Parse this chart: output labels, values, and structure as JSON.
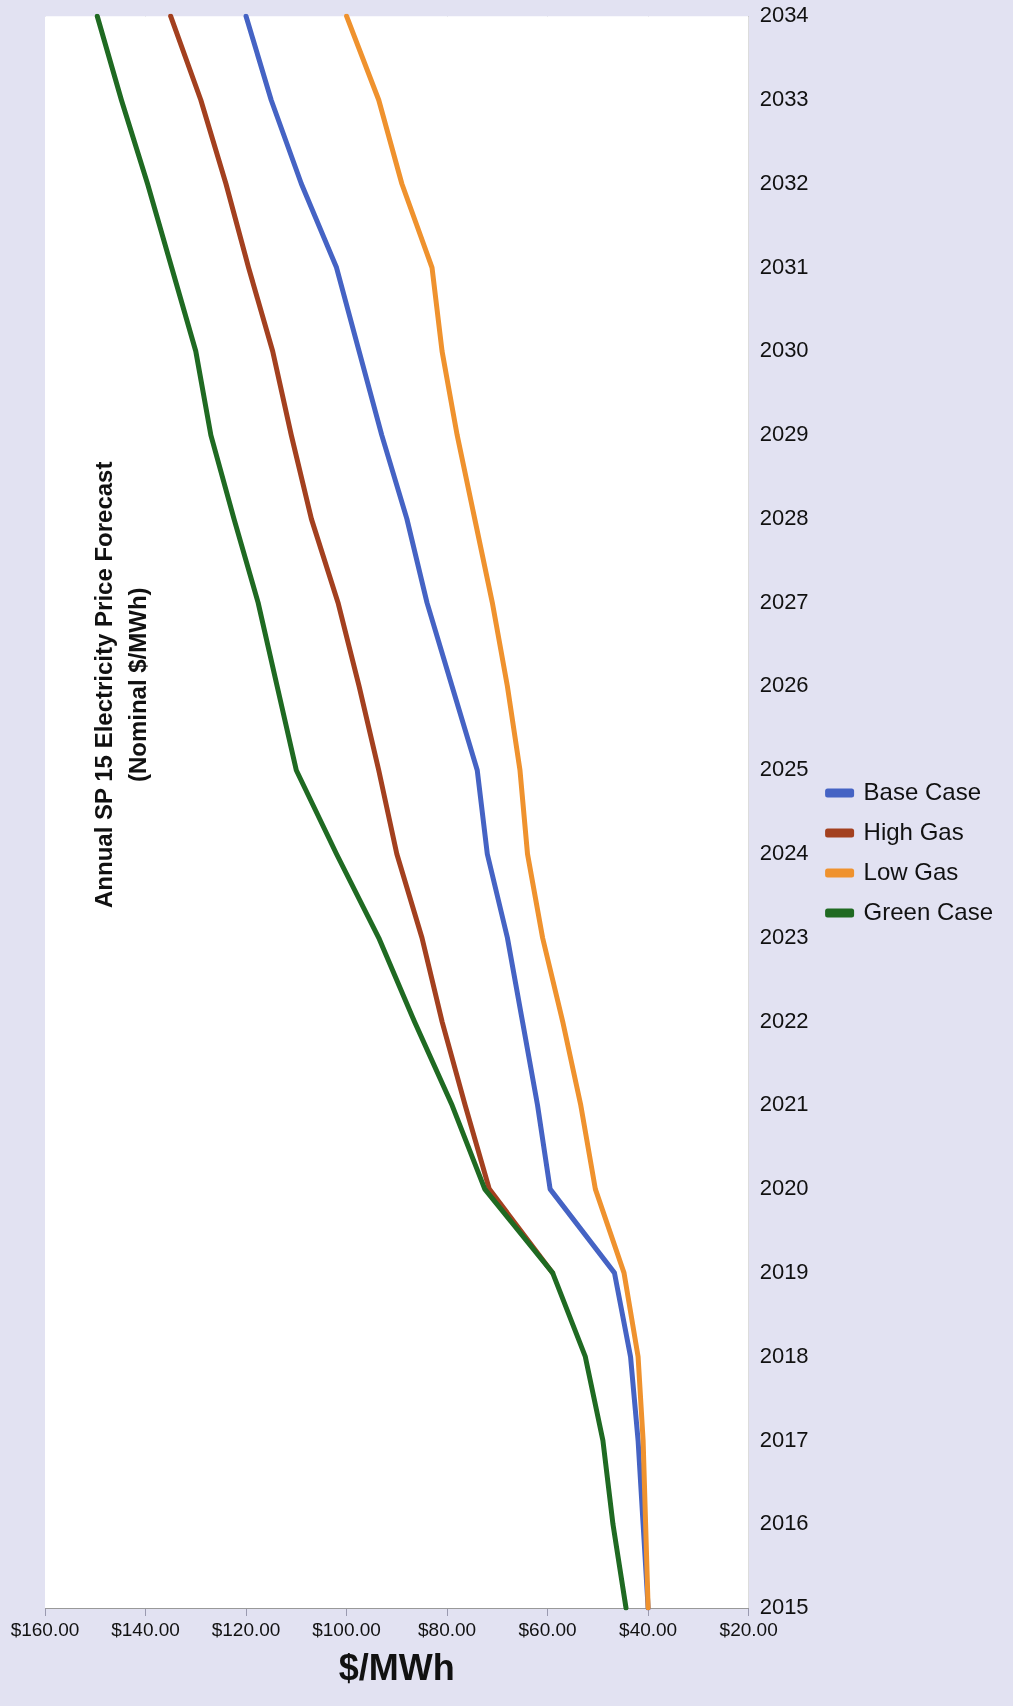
{
  "chart_data": {
    "type": "line",
    "title": "Annual SP 15 Electricity Price Forecast",
    "subtitle": "(Nominal $/MWh)",
    "xlabel": "$/MWh",
    "orientation": "horizontal",
    "categories": [
      "2034",
      "2033",
      "2032",
      "2031",
      "2030",
      "2029",
      "2028",
      "2027",
      "2026",
      "2025",
      "2024",
      "2023",
      "2022",
      "2021",
      "2020",
      "2019",
      "2018",
      "2017",
      "2016",
      "2015"
    ],
    "series": [
      {
        "name": "Base Case",
        "color": "#4563c4",
        "values": [
          120,
          115,
          109,
          102,
          97.5,
          93,
          88,
          84,
          79,
          74,
          72,
          68,
          65,
          62,
          59.5,
          46.7,
          43.5,
          42,
          41,
          40
        ]
      },
      {
        "name": "High Gas",
        "color": "#a3401f",
        "values": [
          135,
          129,
          124,
          119.5,
          114.7,
          111,
          107,
          101.7,
          97.5,
          93.6,
          90,
          85,
          81,
          76.4,
          71.6,
          59,
          null,
          null,
          null,
          null
        ]
      },
      {
        "name": "Low Gas",
        "color": "#ef922e",
        "values": [
          100,
          93.6,
          89,
          83,
          81,
          78,
          74.5,
          71,
          68,
          65.5,
          64,
          61,
          57,
          53.4,
          50.5,
          44.8,
          42,
          41,
          40.5,
          40
        ]
      },
      {
        "name": "Green Case",
        "color": "#1f6a22",
        "values": [
          149.6,
          144.8,
          139.6,
          134.8,
          130,
          127,
          122.4,
          117.6,
          113.8,
          110,
          102,
          93.6,
          86.5,
          79,
          72.5,
          59,
          52.5,
          49,
          47,
          44.4
        ]
      }
    ],
    "xlim": [
      160,
      20
    ],
    "xticks": [
      {
        "value": 20,
        "label": "$20.00"
      },
      {
        "value": 40,
        "label": "$40.00"
      },
      {
        "value": 60,
        "label": "$60.00"
      },
      {
        "value": 80,
        "label": "$80.00"
      },
      {
        "value": 100,
        "label": "$100.00"
      },
      {
        "value": 120,
        "label": "$120.00"
      },
      {
        "value": 140,
        "label": "$140.00"
      },
      {
        "value": 160,
        "label": "$160.00"
      }
    ],
    "grid": "x",
    "legend": "right",
    "marker": "none",
    "line_style": "solid"
  }
}
